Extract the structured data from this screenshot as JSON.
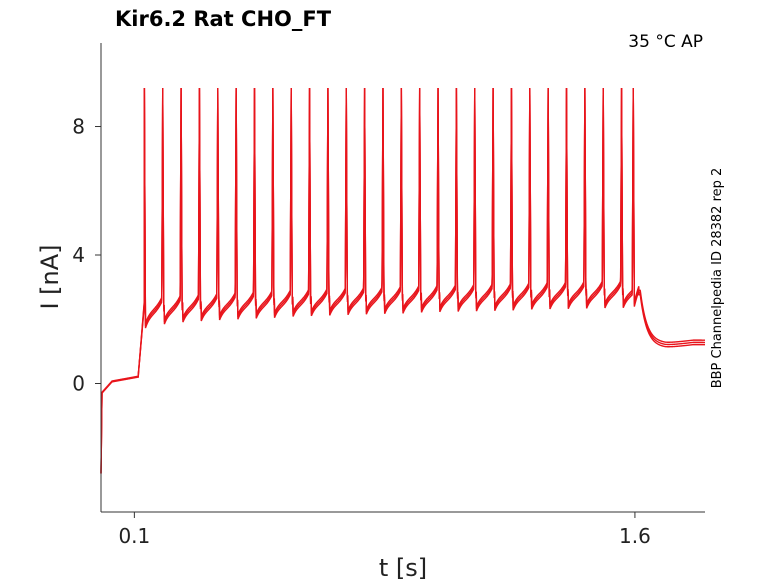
{
  "chart_data": {
    "type": "line",
    "title": "Kir6.2  Rat  CHO_FT",
    "condition": "35 °C  AP",
    "side_label": "BBP Channelpedia ID 28382 rep 2",
    "xlabel": "t [s]",
    "ylabel": "I [nA]",
    "xticks": [
      0.1,
      1.6
    ],
    "xtick_labels": [
      "0.1",
      "1.6"
    ],
    "yticks": [
      0,
      4,
      8
    ],
    "ytick_labels": [
      "0",
      "4",
      "8"
    ],
    "xlim": [
      0.0,
      1.81
    ],
    "ylim": [
      -4.0,
      10.6
    ],
    "grid": false,
    "line_color": "#e8141b",
    "repetitions": 3,
    "stimulus_on_s": 0.112,
    "stimulus_off_s": 1.612,
    "pre_stimulus_level_nA": 0.2,
    "initial_transient_nA": -2.8,
    "spike_peak_nA": 9.2,
    "interspike_baseline_nA": [
      2.0,
      2.9
    ],
    "post_stimulus_level_nA": 1.35,
    "spike_times_s": [
      0.13,
      0.185,
      0.24,
      0.295,
      0.35,
      0.405,
      0.46,
      0.515,
      0.57,
      0.625,
      0.68,
      0.735,
      0.79,
      0.845,
      0.9,
      0.955,
      1.01,
      1.065,
      1.12,
      1.175,
      1.23,
      1.285,
      1.34,
      1.395,
      1.45,
      1.505,
      1.56,
      1.595
    ]
  }
}
